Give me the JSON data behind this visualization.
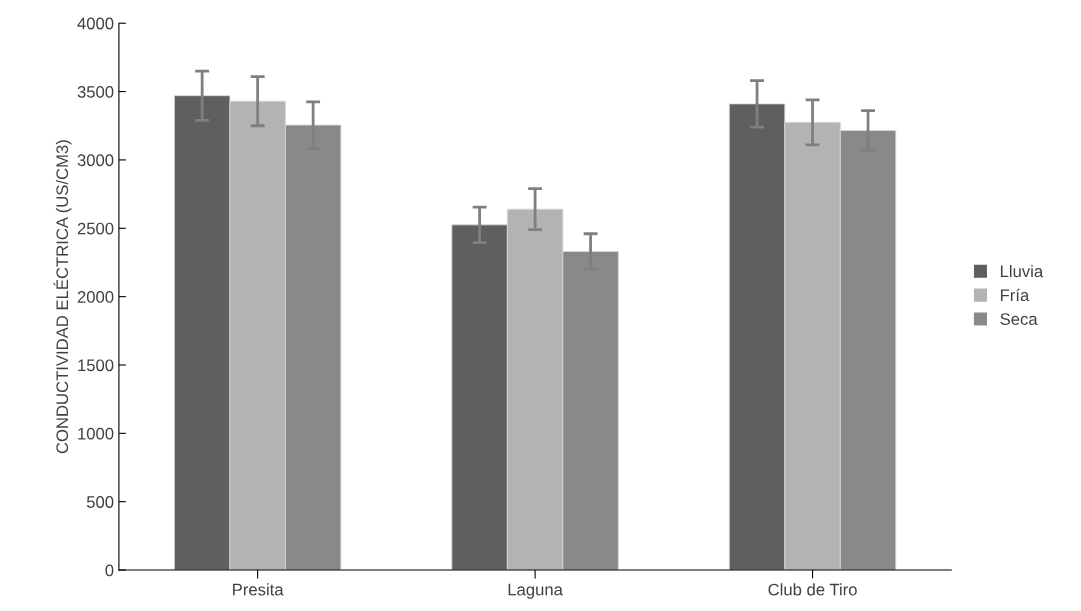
{
  "chart_data": {
    "type": "bar",
    "ylabel": "CONDUCTIVIDAD ELÉCTRICA (US/CM3)",
    "categories": [
      "Presita",
      "Laguna",
      "Club de Tiro"
    ],
    "series": [
      {
        "name": "Lluvia",
        "color": "#5f5f5f",
        "values": [
          3470,
          2525,
          3410
        ],
        "errors": [
          180,
          130,
          170
        ]
      },
      {
        "name": "Fría",
        "color": "#b3b3b3",
        "values": [
          3430,
          2640,
          3275
        ],
        "errors": [
          180,
          150,
          165
        ]
      },
      {
        "name": "Seca",
        "color": "#898989",
        "values": [
          3255,
          2330,
          3215
        ],
        "errors": [
          170,
          130,
          145
        ]
      }
    ],
    "ylim": [
      0,
      4000
    ],
    "yticks": [
      0,
      500,
      1000,
      1500,
      2000,
      2500,
      3000,
      3500,
      4000
    ],
    "grid": false,
    "legend": "right"
  }
}
